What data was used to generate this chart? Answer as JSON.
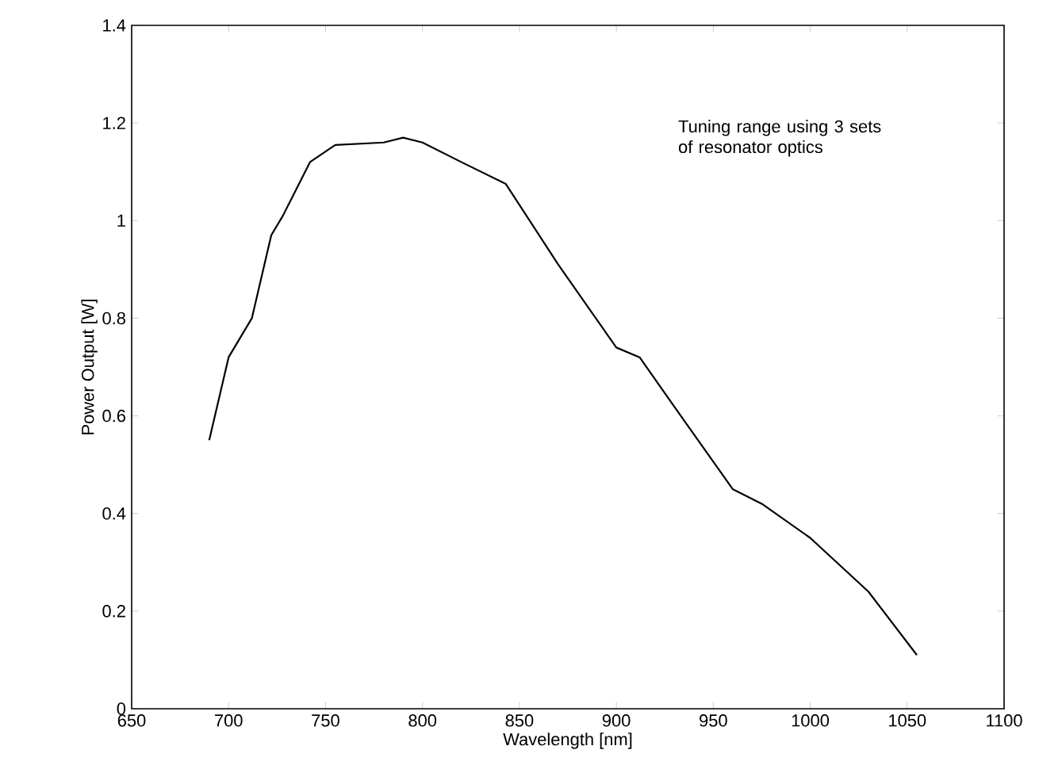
{
  "chart_data": {
    "type": "line",
    "xlabel": "Wavelength [nm]",
    "ylabel": "Power Output [W]",
    "annotations": [
      "Tuning range using 3 sets of resonator optics"
    ],
    "x": [
      690,
      700,
      712,
      722,
      728,
      742,
      755,
      780,
      790,
      800,
      820,
      843,
      870,
      900,
      912,
      935,
      960,
      975,
      1000,
      1030,
      1055
    ],
    "series": [
      {
        "color": "#000000",
        "values": [
          0.55,
          0.72,
          0.8,
          0.97,
          1.01,
          1.12,
          1.155,
          1.16,
          1.17,
          1.16,
          1.12,
          1.075,
          0.91,
          0.74,
          0.72,
          0.59,
          0.45,
          0.42,
          0.35,
          0.24,
          0.11
        ]
      }
    ],
    "xlim": [
      650,
      1100
    ],
    "xticks": [
      650,
      700,
      750,
      800,
      850,
      900,
      950,
      1000,
      1050,
      1100
    ],
    "ylim": [
      0,
      1.4
    ],
    "yticks": [
      0,
      0.2,
      0.4,
      0.6,
      0.8,
      1,
      1.2,
      1.4
    ],
    "marker": "none",
    "line_style": "solid"
  }
}
